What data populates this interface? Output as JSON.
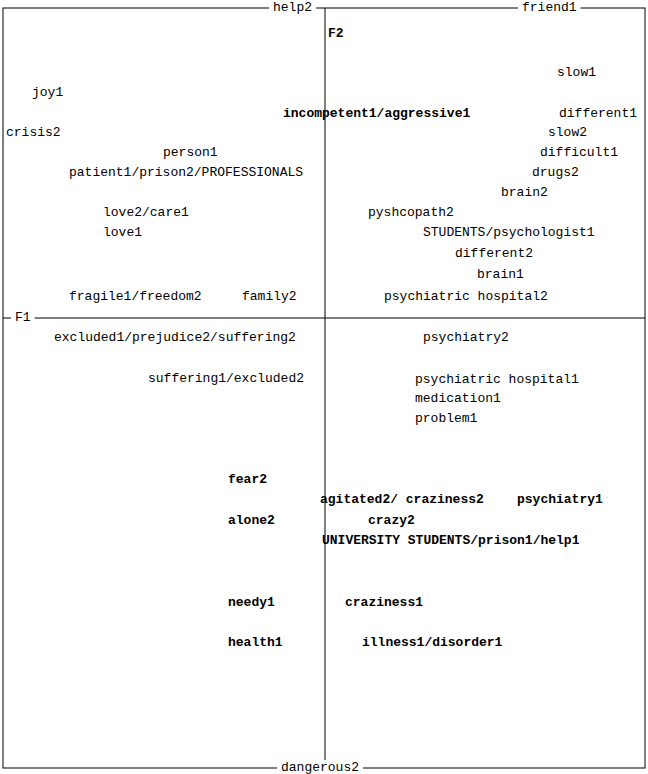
{
  "chart_data": {
    "type": "scatter",
    "x_label": "F1",
    "y_label": "F2",
    "xlim": [
      -3.22,
      3.2
    ],
    "ylim": [
      -4.5,
      3.1
    ],
    "xticks": [
      0
    ],
    "yticks": [
      0
    ],
    "tick_labels": false,
    "grid": false,
    "data_labels": true,
    "series": [
      {
        "marker": "text",
        "color": "#000000",
        "labels": [
          "slow1",
          "joy1",
          "different1",
          "crisis2",
          "slow2",
          "person1",
          "difficult1",
          "patient1/prison2/PROFESSIONALS",
          "drugs2",
          "brain2",
          "love2/care1",
          "pyshcopath2",
          "love1",
          "STUDENTS/psychologist1",
          "different2",
          "brain1",
          "fragile1/freedom2",
          "family2",
          "psychiatric hospital2",
          "excluded1/prejudice2/suffering2",
          "psychiatry2",
          "suffering1/excluded2",
          "psychiatric hospital1",
          "medication1",
          "problem1",
          "help2",
          "friend1",
          "dangerous2"
        ],
        "x": [
          2.32,
          -2.93,
          2.34,
          -3.19,
          2.23,
          -1.62,
          2.15,
          -2.56,
          2.07,
          1.76,
          -2.22,
          0.43,
          -2.22,
          0.98,
          1.3,
          1.52,
          -2.56,
          -0.83,
          0.59,
          -2.71,
          0.98,
          -1.77,
          0.9,
          0.9,
          0.9,
          -0.52,
          1.97,
          -0.44
        ],
        "values": [
          2.45,
          2.25,
          2.04,
          1.85,
          1.85,
          1.65,
          1.65,
          1.45,
          1.45,
          1.25,
          1.05,
          1.05,
          0.85,
          0.85,
          0.64,
          0.43,
          0.21,
          0.21,
          0.21,
          -0.2,
          -0.2,
          -0.61,
          -0.62,
          -0.81,
          -1.01,
          3.1,
          3.1,
          -4.5
        ]
      },
      {
        "marker": "bold",
        "color": "#000000",
        "labels": [
          "incompetent1/aggressive1",
          "fear2",
          "agitated2/ craziness2",
          "psychiatry1",
          "alone2",
          "crazy2",
          "UNIVERSITY STUDENTS/prison1/help1",
          "needy1",
          "craziness1",
          "health1",
          "illness1/disorder1"
        ],
        "x": [
          -0.42,
          -0.97,
          -0.05,
          1.92,
          -0.97,
          0.43,
          -0.03,
          -0.97,
          0.2,
          -0.97,
          0.37
        ],
        "values": [
          2.04,
          -1.62,
          -1.82,
          -1.82,
          -2.03,
          -2.03,
          -2.23,
          -2.85,
          -2.85,
          -3.25,
          -3.25
        ]
      }
    ]
  }
}
